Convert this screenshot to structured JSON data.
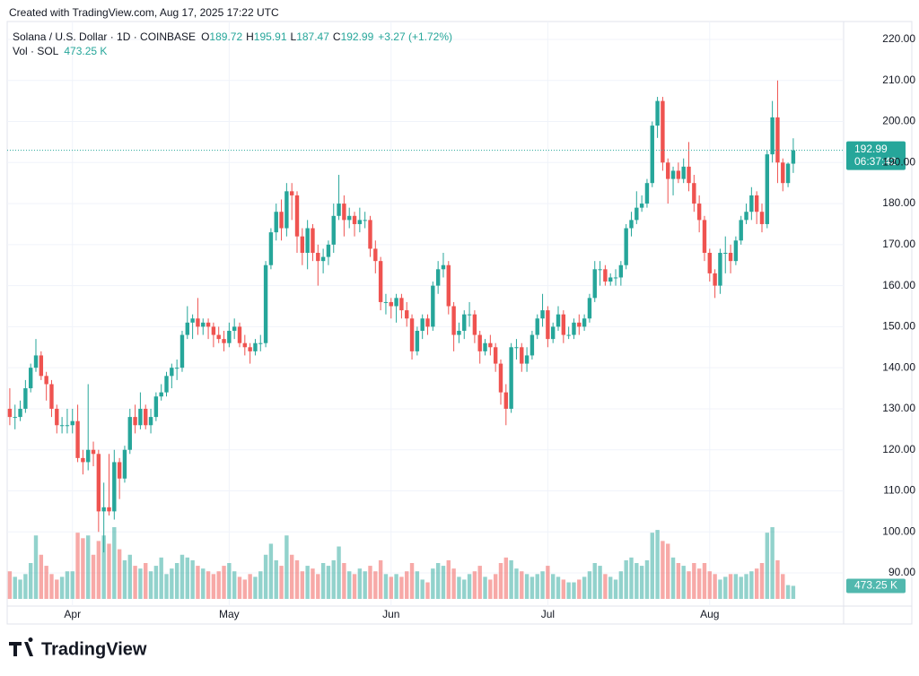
{
  "chart_data": {
    "type": "candlestick",
    "caption": "Created with TradingView.com, Aug 17, 2025 17:22 UTC",
    "title": "Solana / U.S. Dollar · 1D · COINBASE",
    "ohlc_keys": [
      "O",
      "H",
      "L",
      "C"
    ],
    "change_label": "+3.27 (+1.72%)",
    "countdown": "06:37:42",
    "brand": "TradingView",
    "up_color": "#26a69a",
    "down_color": "#ef5350",
    "grid": true,
    "ylim": [
      82.8,
      224.8
    ],
    "yticks": [
      {
        "value": 90,
        "label": "90.00"
      },
      {
        "value": 100,
        "label": "100.00"
      },
      {
        "value": 110,
        "label": "110.00"
      },
      {
        "value": 120,
        "label": "120.00"
      },
      {
        "value": 130,
        "label": "130.00"
      },
      {
        "value": 140,
        "label": "140.00"
      },
      {
        "value": 150,
        "label": "150.00"
      },
      {
        "value": 160,
        "label": "160.00"
      },
      {
        "value": 170,
        "label": "170.00"
      },
      {
        "value": 180,
        "label": "180.00"
      },
      {
        "value": 190,
        "label": "190.00"
      },
      {
        "value": 200,
        "label": "200.00"
      },
      {
        "value": 210,
        "label": "210.00"
      },
      {
        "value": 220,
        "label": "220.00"
      }
    ],
    "categories": [
      null,
      null,
      null,
      null,
      null,
      null,
      null,
      null,
      null,
      null,
      null,
      null,
      "Apr",
      null,
      null,
      null,
      null,
      null,
      null,
      null,
      null,
      null,
      null,
      null,
      null,
      null,
      null,
      null,
      null,
      null,
      null,
      null,
      null,
      null,
      null,
      null,
      null,
      null,
      null,
      null,
      null,
      null,
      "May",
      null,
      null,
      null,
      null,
      null,
      null,
      null,
      null,
      null,
      null,
      null,
      null,
      null,
      null,
      null,
      null,
      null,
      null,
      null,
      null,
      null,
      null,
      null,
      null,
      null,
      null,
      null,
      null,
      null,
      null,
      "Jun",
      null,
      null,
      null,
      null,
      null,
      null,
      null,
      null,
      null,
      null,
      null,
      null,
      null,
      null,
      null,
      null,
      null,
      null,
      null,
      null,
      null,
      null,
      null,
      null,
      null,
      null,
      null,
      null,
      null,
      "Jul",
      null,
      null,
      null,
      null,
      null,
      null,
      null,
      null,
      null,
      null,
      null,
      null,
      null,
      null,
      null,
      null,
      null,
      null,
      null,
      null,
      null,
      null,
      null,
      null,
      null,
      null,
      null,
      null,
      null,
      null,
      "Aug",
      null,
      null,
      null,
      null,
      null,
      null,
      null,
      null,
      null,
      null,
      null,
      null,
      null,
      null,
      null,
      null
    ],
    "open": [
      130,
      128,
      128,
      130,
      135,
      140,
      143,
      138,
      136,
      130,
      126,
      126,
      126,
      127,
      118,
      117,
      120,
      119,
      105,
      106,
      105,
      117,
      113,
      120,
      128,
      126,
      130,
      126,
      128,
      133,
      134,
      138,
      140,
      140,
      148,
      151,
      152,
      150,
      151,
      150,
      148,
      147,
      146,
      149,
      150,
      146,
      145,
      144,
      146,
      146,
      165,
      173,
      178,
      174,
      183,
      182,
      172,
      168,
      174,
      168,
      166,
      167,
      170,
      177,
      180,
      176,
      177,
      175,
      176,
      176,
      169,
      166,
      156,
      156,
      155,
      157,
      154,
      152,
      144,
      149,
      152,
      150,
      160,
      164,
      165,
      155,
      148,
      149,
      153,
      153,
      148,
      144,
      146,
      145,
      141,
      134,
      130,
      145,
      145,
      141,
      143,
      148,
      152,
      154,
      147,
      150,
      153,
      148,
      148,
      151,
      150,
      152,
      157,
      164,
      164,
      161,
      162,
      162,
      165,
      174,
      176,
      179,
      180,
      185,
      199,
      205,
      190,
      186,
      188,
      186,
      189,
      185,
      180,
      176,
      168,
      163,
      160,
      168,
      168,
      166,
      171,
      176,
      178,
      182,
      178,
      175,
      192,
      201,
      190,
      185,
      189.72
    ],
    "high": [
      135,
      131,
      132,
      137,
      141,
      147,
      144,
      139,
      137,
      131,
      128,
      130,
      130,
      131,
      120,
      136,
      122,
      120,
      112,
      119,
      120,
      118,
      121,
      130,
      131,
      134,
      131,
      130,
      134,
      136,
      139,
      141,
      142,
      149,
      155,
      153,
      157,
      152,
      152,
      151,
      150,
      149,
      151,
      152,
      151,
      148,
      146,
      147,
      148,
      166,
      174,
      180,
      181,
      185,
      185,
      183,
      174,
      176,
      175,
      170,
      169,
      171,
      180,
      187,
      182,
      179,
      178,
      179,
      178,
      177,
      171,
      167,
      158,
      157,
      158,
      158,
      156,
      153,
      150,
      153,
      153,
      161,
      166,
      168,
      166,
      156,
      151,
      154,
      156,
      154,
      149,
      147,
      148,
      146,
      142,
      136,
      146,
      147,
      146,
      145,
      149,
      153,
      158,
      155,
      151,
      155,
      154,
      150,
      152,
      153,
      153,
      158,
      166,
      166,
      165,
      163,
      164,
      166,
      175,
      178,
      183,
      182,
      186,
      200,
      206,
      206,
      191,
      189,
      190,
      191,
      195,
      187,
      182,
      177,
      169,
      164,
      169,
      172,
      170,
      172,
      177,
      180,
      184,
      183,
      180,
      193,
      205,
      210,
      191,
      190,
      195.91
    ],
    "low": [
      126,
      125,
      127,
      129,
      134,
      139,
      137,
      132,
      128,
      124,
      124,
      124,
      124,
      117,
      114,
      115,
      116,
      100,
      95,
      104,
      103,
      108,
      112,
      119,
      124,
      125,
      125,
      124,
      127,
      132,
      133,
      135,
      137,
      139,
      147,
      147,
      148,
      148,
      147,
      145,
      146,
      144,
      145,
      147,
      145,
      143,
      141,
      143,
      144,
      145,
      164,
      171,
      171,
      172,
      176,
      168,
      165,
      164,
      166,
      160,
      163,
      165,
      168,
      176,
      172,
      174,
      172,
      173,
      174,
      167,
      163,
      154,
      153,
      152,
      151,
      152,
      150,
      142,
      143,
      147,
      148,
      149,
      158,
      162,
      153,
      144,
      146,
      147,
      150,
      146,
      141,
      143,
      143,
      139,
      131,
      126,
      129,
      142,
      139,
      139,
      142,
      147,
      150,
      145,
      146,
      149,
      146,
      147,
      147,
      148,
      149,
      151,
      156,
      160,
      160,
      160,
      160,
      160,
      164,
      172,
      175,
      178,
      179,
      184,
      196,
      188,
      180,
      182,
      185,
      185,
      183,
      178,
      173,
      166,
      161,
      157,
      158,
      163,
      163,
      165,
      170,
      175,
      176,
      175,
      173,
      174,
      190,
      185,
      183,
      184,
      187.47
    ],
    "close": [
      128,
      128,
      130,
      135,
      140,
      143,
      138,
      136,
      130,
      126,
      126,
      126,
      127,
      118,
      117,
      120,
      119,
      105,
      106,
      105,
      117,
      113,
      120,
      128,
      126,
      130,
      126,
      128,
      133,
      134,
      138,
      140,
      140,
      148,
      151,
      152,
      150,
      151,
      150,
      148,
      147,
      146,
      149,
      150,
      146,
      145,
      144,
      146,
      146,
      165,
      173,
      178,
      174,
      183,
      182,
      172,
      168,
      174,
      168,
      166,
      167,
      170,
      177,
      180,
      176,
      177,
      175,
      176,
      176,
      169,
      166,
      156,
      156,
      155,
      157,
      154,
      152,
      144,
      149,
      152,
      150,
      160,
      164,
      165,
      155,
      148,
      149,
      153,
      153,
      148,
      144,
      146,
      145,
      141,
      134,
      130,
      145,
      145,
      141,
      143,
      148,
      152,
      154,
      147,
      150,
      153,
      148,
      148,
      151,
      150,
      152,
      157,
      164,
      164,
      161,
      162,
      162,
      165,
      174,
      176,
      179,
      180,
      185,
      199,
      205,
      190,
      186,
      188,
      186,
      189,
      185,
      180,
      176,
      168,
      163,
      160,
      168,
      168,
      166,
      171,
      176,
      178,
      182,
      178,
      175,
      192,
      201,
      190,
      185,
      189.72,
      192.99
    ],
    "volume": {
      "name": "Vol · SOL",
      "last_label": "473.25 K",
      "values": [
        1000,
        800,
        700,
        900,
        1300,
        2300,
        1600,
        1200,
        900,
        700,
        800,
        1000,
        1000,
        2400,
        2200,
        2300,
        1600,
        2100,
        2300,
        2000,
        2600,
        1800,
        1400,
        1600,
        1200,
        1100,
        1300,
        1000,
        1200,
        1500,
        900,
        1100,
        1300,
        1600,
        1500,
        1400,
        1200,
        1100,
        1000,
        900,
        1000,
        1200,
        1300,
        1000,
        800,
        700,
        900,
        800,
        1000,
        1600,
        2000,
        1400,
        1200,
        2300,
        1600,
        1400,
        1000,
        1200,
        1100,
        900,
        1300,
        1200,
        1400,
        1900,
        1300,
        1000,
        900,
        1100,
        1000,
        1200,
        1000,
        1400,
        900,
        800,
        900,
        800,
        1000,
        1300,
        1000,
        700,
        600,
        1100,
        1300,
        1200,
        1400,
        1100,
        800,
        700,
        900,
        1000,
        1200,
        800,
        700,
        900,
        1300,
        1500,
        1400,
        1100,
        1000,
        900,
        800,
        900,
        1000,
        1200,
        900,
        800,
        700,
        600,
        600,
        700,
        800,
        1000,
        1300,
        1200,
        900,
        800,
        700,
        1000,
        1400,
        1500,
        1300,
        1200,
        1400,
        2400,
        2500,
        2100,
        2000,
        1500,
        1300,
        1200,
        1000,
        1300,
        1100,
        1300,
        1000,
        900,
        700,
        800,
        900,
        900,
        800,
        900,
        1000,
        1100,
        1300,
        2400,
        2600,
        1400,
        900,
        500,
        473.25
      ]
    }
  }
}
